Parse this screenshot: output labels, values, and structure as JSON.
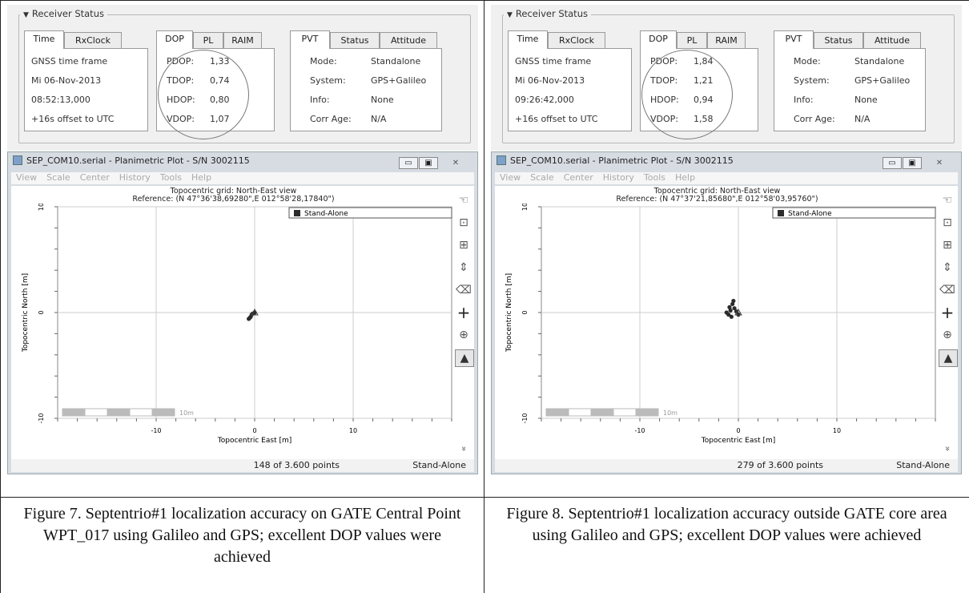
{
  "panels": [
    {
      "status": {
        "title": "Receiver Status",
        "time_tabs": [
          "Time",
          "RxClock"
        ],
        "time_lines": [
          "GNSS time frame",
          "Mi 06-Nov-2013",
          "08:52:13,000",
          "+16s offset to UTC"
        ],
        "dop_tabs": [
          "DOP",
          "PL",
          "RAIM"
        ],
        "dop_labels": [
          "PDOP:",
          "TDOP:",
          "HDOP:",
          "VDOP:"
        ],
        "dop_values": [
          "1,33",
          "0,74",
          "0,80",
          "1,07"
        ],
        "pvt_tabs": [
          "PVT",
          "Status",
          "Attitude"
        ],
        "pvt_labels": [
          "Mode:",
          "System:",
          "Info:",
          "Corr Age:"
        ],
        "pvt_values": [
          "Standalone",
          "GPS+Galileo",
          "None",
          "N/A"
        ]
      },
      "plot": {
        "window_title": "SEP_COM10.serial - Planimetric Plot - S/N 3002115",
        "menu": [
          "View",
          "Scale",
          "Center",
          "History",
          "Tools",
          "Help"
        ],
        "header_line1": "Topocentric grid: North-East view",
        "header_line2": "Reference: (N 47°36'38,69280\",E 012°58'28,17840\")",
        "legend": "Stand-Alone",
        "ylabel": "Topocentric North [m]",
        "xlabel": "Topocentric East [m]",
        "scale_label": "10m",
        "points_text": "148 of 3.600 points",
        "mode_text": "Stand-Alone"
      },
      "caption": "Figure 7.  Septentrio#1 localization accuracy on GATE Central Point WPT_017 using Galileo and GPS; excellent DOP values were achieved"
    },
    {
      "status": {
        "title": "Receiver Status",
        "time_tabs": [
          "Time",
          "RxClock"
        ],
        "time_lines": [
          "GNSS time frame",
          "Mi 06-Nov-2013",
          "09:26:42,000",
          "+16s offset to UTC"
        ],
        "dop_tabs": [
          "DOP",
          "PL",
          "RAIM"
        ],
        "dop_labels": [
          "PDOP:",
          "TDOP:",
          "HDOP:",
          "VDOP:"
        ],
        "dop_values": [
          "1,84",
          "1,21",
          "0,94",
          "1,58"
        ],
        "pvt_tabs": [
          "PVT",
          "Status",
          "Attitude"
        ],
        "pvt_labels": [
          "Mode:",
          "System:",
          "Info:",
          "Corr Age:"
        ],
        "pvt_values": [
          "Standalone",
          "GPS+Galileo",
          "None",
          "N/A"
        ]
      },
      "plot": {
        "window_title": "SEP_COM10.serial - Planimetric Plot - S/N 3002115",
        "menu": [
          "View",
          "Scale",
          "Center",
          "History",
          "Tools",
          "Help"
        ],
        "header_line1": "Topocentric grid: North-East view",
        "header_line2": "Reference: (N 47°37'21,85680\",E 012°58'03,95760\")",
        "legend": "Stand-Alone",
        "ylabel": "Topocentric North [m]",
        "xlabel": "Topocentric East [m]",
        "scale_label": "10m",
        "points_text": "279 of 3.600 points",
        "mode_text": "Stand-Alone"
      },
      "caption": "Figure 8.  Septentrio#1 localization accuracy outside GATE core area using Galileo and GPS; excellent DOP values were achieved"
    }
  ],
  "chart_data": [
    {
      "type": "scatter",
      "xlabel": "Topocentric East [m]",
      "ylabel": "Topocentric North [m]",
      "xlim": [
        -20,
        20
      ],
      "ylim": [
        -10,
        10
      ],
      "xticks": [
        -10,
        0,
        10
      ],
      "yticks": [
        -10,
        0,
        10
      ],
      "grid": true,
      "legend": "top-right",
      "series": [
        {
          "name": "Stand-Alone",
          "x": [
            -0.6,
            -0.4,
            -0.2,
            -0.5,
            -0.3,
            0.0
          ],
          "y": [
            -0.6,
            -0.4,
            -0.1,
            -0.5,
            -0.2,
            0.0
          ]
        }
      ]
    },
    {
      "type": "scatter",
      "xlabel": "Topocentric East [m]",
      "ylabel": "Topocentric North [m]",
      "xlim": [
        -20,
        20
      ],
      "ylim": [
        -10,
        10
      ],
      "xticks": [
        -10,
        0,
        10
      ],
      "yticks": [
        -10,
        0,
        10
      ],
      "grid": true,
      "legend": "top-right",
      "series": [
        {
          "name": "Stand-Alone",
          "x": [
            -1.2,
            -0.9,
            -0.6,
            -0.8,
            -0.4,
            -1.0,
            -0.5,
            -0.2,
            -0.7,
            0.0
          ],
          "y": [
            0.0,
            0.5,
            0.8,
            0.2,
            0.4,
            -0.2,
            1.1,
            0.1,
            -0.4,
            -0.2
          ]
        }
      ]
    }
  ]
}
